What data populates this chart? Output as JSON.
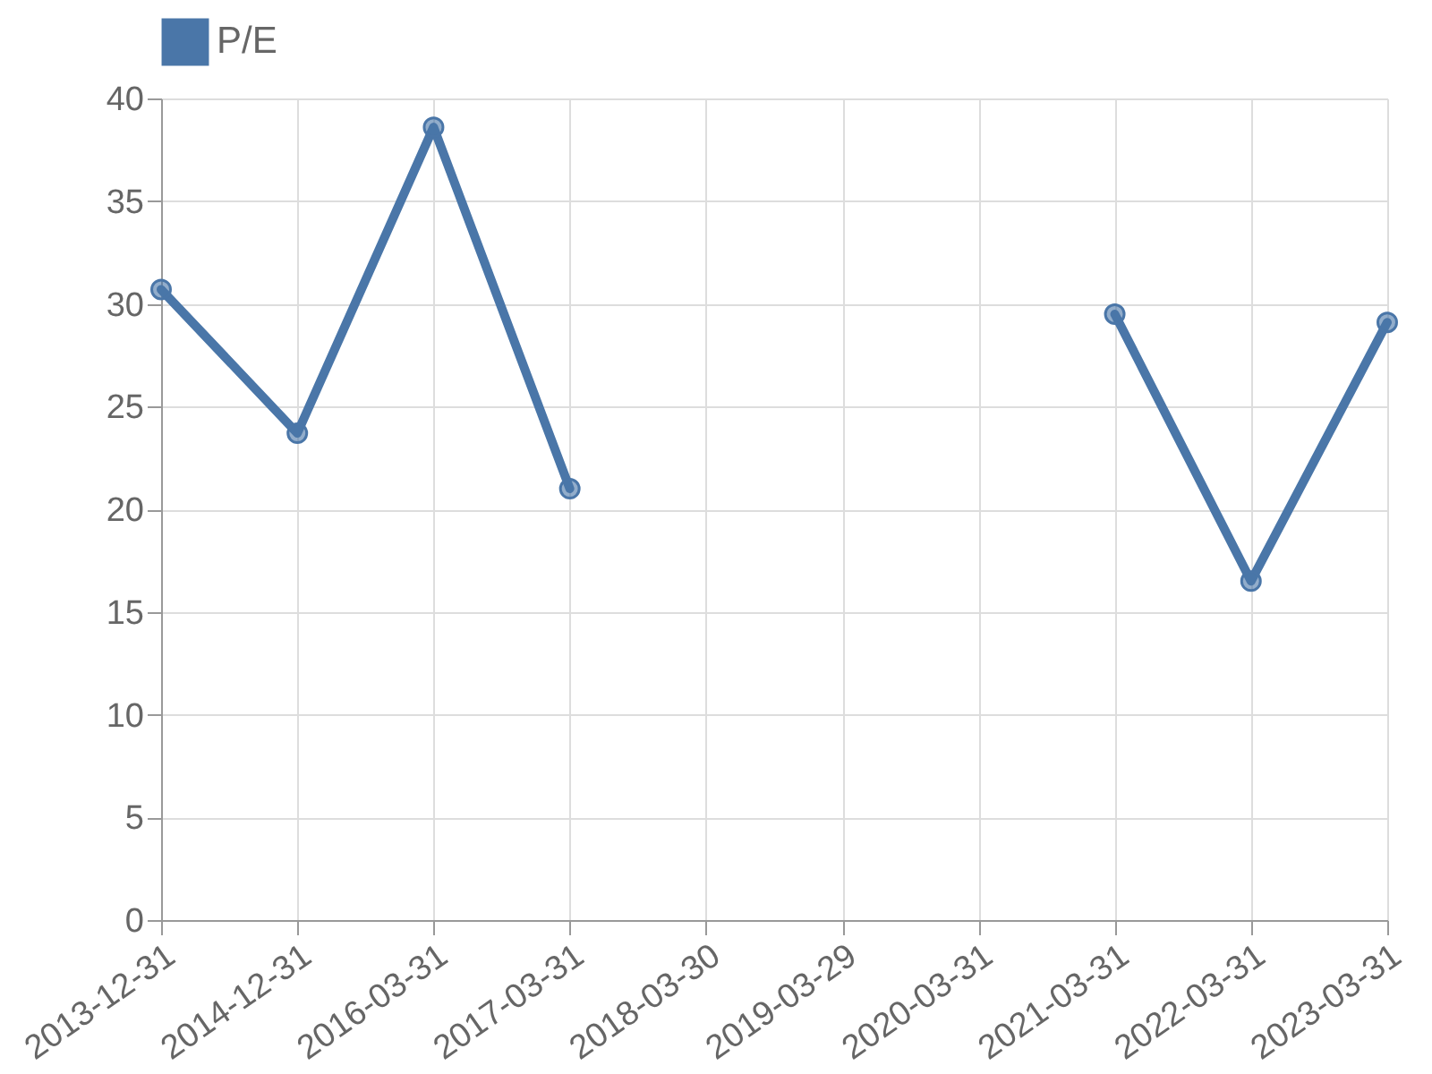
{
  "chart_data": {
    "type": "line",
    "categories": [
      "2013-12-31",
      "2014-12-31",
      "2016-03-31",
      "2017-03-31",
      "2018-03-30",
      "2019-03-29",
      "2020-03-31",
      "2021-03-31",
      "2022-03-31",
      "2023-03-31"
    ],
    "series": [
      {
        "name": "P/E",
        "color": "#4a76a8",
        "values": [
          30.7,
          23.7,
          38.6,
          21.0,
          null,
          null,
          null,
          29.5,
          16.5,
          29.1
        ]
      }
    ],
    "ylim": [
      0,
      40
    ],
    "yticks": [
      0,
      5,
      10,
      15,
      20,
      25,
      30,
      35,
      40
    ],
    "grid": true,
    "legend": "top",
    "marker": "circle",
    "line_style": "solid"
  }
}
